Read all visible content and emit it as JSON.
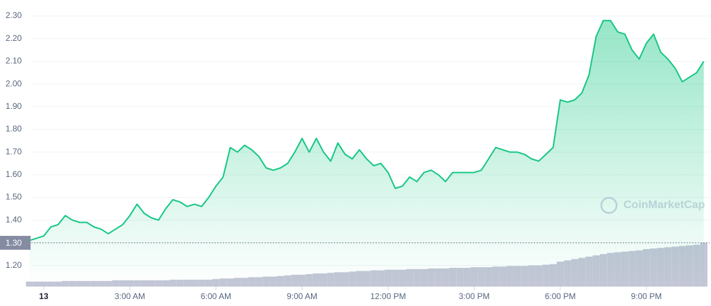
{
  "chart_data": {
    "type": "line",
    "categories": [
      null,
      null,
      "13",
      null,
      null,
      null,
      null,
      null,
      null,
      null,
      null,
      null,
      null,
      null,
      "3:00 AM",
      null,
      null,
      null,
      null,
      null,
      null,
      null,
      null,
      null,
      null,
      null,
      "6:00 AM",
      null,
      null,
      null,
      null,
      null,
      null,
      null,
      null,
      null,
      null,
      null,
      "9:00 AM",
      null,
      null,
      null,
      null,
      null,
      null,
      null,
      null,
      null,
      null,
      null,
      "12:00 PM",
      null,
      null,
      null,
      null,
      null,
      null,
      null,
      null,
      null,
      null,
      null,
      "3:00 PM",
      null,
      null,
      null,
      null,
      null,
      null,
      null,
      null,
      null,
      null,
      null,
      "6:00 PM",
      null,
      null,
      null,
      null,
      null,
      null,
      null,
      null,
      null,
      null,
      null,
      "9:00 PM",
      null,
      null,
      null,
      null,
      null,
      null,
      null,
      null
    ],
    "series": [
      {
        "color": "#16c784",
        "values": [
          1.31,
          1.32,
          1.33,
          1.37,
          1.38,
          1.42,
          1.4,
          1.39,
          1.39,
          1.37,
          1.36,
          1.34,
          1.36,
          1.38,
          1.42,
          1.47,
          1.43,
          1.41,
          1.4,
          1.45,
          1.49,
          1.48,
          1.46,
          1.47,
          1.46,
          1.5,
          1.55,
          1.59,
          1.72,
          1.7,
          1.73,
          1.71,
          1.68,
          1.63,
          1.62,
          1.63,
          1.65,
          1.7,
          1.76,
          1.7,
          1.76,
          1.7,
          1.66,
          1.74,
          1.69,
          1.67,
          1.71,
          1.67,
          1.64,
          1.65,
          1.61,
          1.54,
          1.55,
          1.59,
          1.57,
          1.61,
          1.62,
          1.6,
          1.57,
          1.61,
          1.61,
          1.61,
          1.61,
          1.62,
          1.67,
          1.72,
          1.71,
          1.7,
          1.7,
          1.69,
          1.67,
          1.66,
          1.69,
          1.72,
          1.93,
          1.92,
          1.93,
          1.96,
          2.04,
          2.21,
          2.28,
          2.28,
          2.23,
          2.22,
          2.15,
          2.11,
          2.18,
          2.22,
          2.14,
          2.11,
          2.07,
          2.01,
          2.03,
          2.05,
          2.1
        ]
      },
      {
        "color": "#c3c6d6",
        "axis": "y2",
        "type": "bar",
        "values": [
          8,
          8,
          8,
          8,
          8,
          9,
          9,
          9,
          9,
          9,
          9,
          9,
          10,
          10,
          10,
          10,
          10,
          10,
          10,
          10,
          11,
          11,
          11,
          11,
          11,
          11,
          12,
          13,
          13,
          14,
          14,
          15,
          15,
          16,
          16,
          17,
          18,
          19,
          19,
          20,
          21,
          21,
          22,
          23,
          23,
          24,
          25,
          25,
          26,
          26,
          27,
          27,
          27,
          28,
          28,
          28,
          29,
          29,
          29,
          30,
          30,
          30,
          31,
          31,
          31,
          32,
          32,
          33,
          33,
          33,
          34,
          34,
          35,
          36,
          40,
          42,
          44,
          46,
          48,
          50,
          52,
          54,
          55,
          56,
          57,
          58,
          60,
          61,
          62,
          63,
          64,
          65,
          66,
          67,
          70
        ]
      }
    ],
    "ylim": [
      1.107,
      2.346
    ],
    "yticks": [
      {
        "value": 1.2,
        "label": "1.20"
      },
      {
        "value": 1.3,
        "label": "1.30"
      },
      {
        "value": 1.4,
        "label": "1.40"
      },
      {
        "value": 1.5,
        "label": "1.50"
      },
      {
        "value": 1.6,
        "label": "1.60"
      },
      {
        "value": 1.7,
        "label": "1.70"
      },
      {
        "value": 1.8,
        "label": "1.80"
      },
      {
        "value": 1.9,
        "label": "1.90"
      },
      {
        "value": 2.0,
        "label": "2.00"
      },
      {
        "value": 2.1,
        "label": "2.10"
      },
      {
        "value": 2.2,
        "label": "2.20"
      },
      {
        "value": 2.3,
        "label": "2.30"
      }
    ],
    "y2lim": [
      0,
      100
    ],
    "reference_line": {
      "value": 1.3,
      "label": "1.30"
    },
    "watermark": "CoinMarketCap",
    "grid": true
  }
}
